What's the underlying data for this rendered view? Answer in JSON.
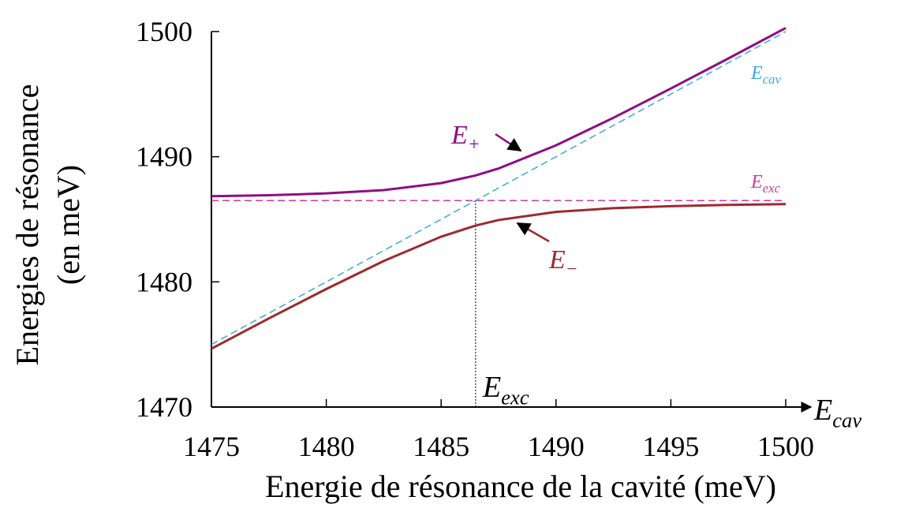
{
  "chart_data": {
    "type": "line",
    "y_title_lines": [
      "Energies de résonance",
      "(en meV)"
    ],
    "x_title": "Energie de résonance de la cavité (meV)",
    "xlim": [
      1475,
      1500
    ],
    "ylim": [
      1470,
      1500
    ],
    "xticks": [
      1475,
      1480,
      1485,
      1490,
      1495,
      1500
    ],
    "yticks": [
      1470,
      1480,
      1490,
      1500
    ],
    "series": [
      {
        "label": {
          "text": "E",
          "sub": "+"
        },
        "color": "#8e0e83",
        "dashed": false,
        "x": [
          1475,
          1477.5,
          1480,
          1482.5,
          1485,
          1486.5,
          1487.5,
          1490,
          1492.5,
          1495,
          1497.5,
          1500
        ],
        "values": [
          1486.84,
          1486.92,
          1487.07,
          1487.33,
          1487.89,
          1488.5,
          1489.06,
          1490.91,
          1493.11,
          1495.45,
          1497.85,
          1500.29
        ]
      },
      {
        "label": {
          "text": "E",
          "sub": "−"
        },
        "color": "#9e2a2f",
        "dashed": false,
        "x": [
          1475,
          1477.5,
          1480,
          1482.5,
          1485,
          1486.5,
          1487.5,
          1490,
          1492.5,
          1495,
          1497.5,
          1500
        ],
        "values": [
          1474.66,
          1477.08,
          1479.43,
          1481.67,
          1483.61,
          1484.5,
          1484.94,
          1485.59,
          1485.89,
          1486.05,
          1486.15,
          1486.21
        ]
      },
      {
        "label": {
          "text": "E",
          "sub": "cav"
        },
        "color": "#3fa9d5",
        "dashed": true,
        "x": [
          1475,
          1500
        ],
        "values": [
          1475,
          1500
        ]
      },
      {
        "label": {
          "text": "E",
          "sub": "exc"
        },
        "color": "#d63a97",
        "dashed": true,
        "x": [
          1475,
          1500
        ],
        "values": [
          1486.5,
          1486.5
        ]
      }
    ],
    "exc_axis_label": {
      "text": "E",
      "sub": "exc"
    },
    "cav_axis_label": {
      "text": "E",
      "sub": "cav"
    }
  }
}
